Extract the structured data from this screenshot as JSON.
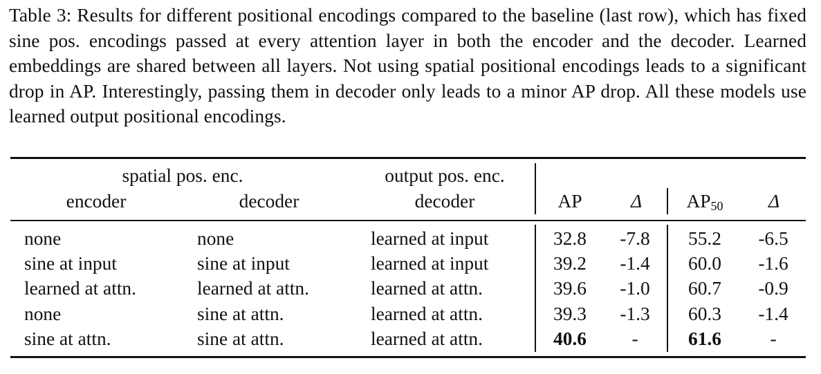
{
  "caption": "Table 3: Results for different positional encodings compared to the baseline (last row), which has fixed sine pos. encodings passed at every attention layer in both the encoder and the decoder. Learned embeddings are shared between all layers. Not using spatial positional encodings leads to a significant drop in AP. Interestingly, passing them in decoder only leads to a minor AP drop. All these models use learned output positional encodings.",
  "header": {
    "group_spatial": "spatial pos. enc.",
    "group_output": "output pos. enc.",
    "encoder": "encoder",
    "decoder": "decoder",
    "output_decoder": "decoder",
    "ap": "AP",
    "delta1": "Δ",
    "ap50_main": "AP",
    "ap50_sub": "50",
    "delta2": "Δ"
  },
  "rows": [
    {
      "encoder": "none",
      "decoder": "none",
      "output": "learned at input",
      "ap": "32.8",
      "d1": "-7.8",
      "ap50": "55.2",
      "d2": "-6.5"
    },
    {
      "encoder": "sine at input",
      "decoder": "sine at input",
      "output": "learned at input",
      "ap": "39.2",
      "d1": "-1.4",
      "ap50": "60.0",
      "d2": "-1.6"
    },
    {
      "encoder": "learned at attn.",
      "decoder": "learned at attn.",
      "output": "learned at attn.",
      "ap": "39.6",
      "d1": "-1.0",
      "ap50": "60.7",
      "d2": "-0.9"
    },
    {
      "encoder": "none",
      "decoder": "sine at attn.",
      "output": "learned at attn.",
      "ap": "39.3",
      "d1": "-1.3",
      "ap50": "60.3",
      "d2": "-1.4"
    },
    {
      "encoder": "sine at attn.",
      "decoder": "sine at attn.",
      "output": "learned at attn.",
      "ap": "40.6",
      "d1": "-",
      "ap50": "61.6",
      "d2": "-"
    }
  ]
}
